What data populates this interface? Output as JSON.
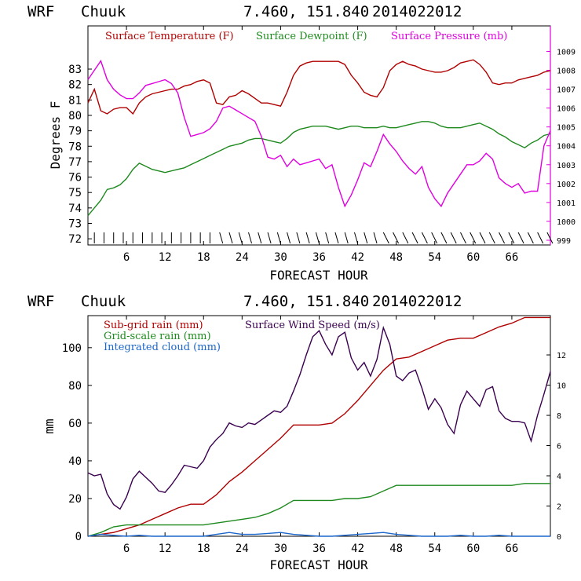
{
  "colors": {
    "temperature": "#b00000",
    "dewpoint": "#1e8a1e",
    "pressure": "#e000e0",
    "subgrid_rain": "#b00000",
    "gridscale_rain": "#1e8a1e",
    "cloud": "#1a66cc",
    "wind_speed": "#3a0050"
  },
  "chart_data": [
    {
      "type": "line",
      "header": {
        "model": "WRF",
        "station": "Chuuk",
        "coords": "7.460, 151.840",
        "init": "2014022012"
      },
      "xlabel": "FORECAST HOUR",
      "ylabel": "Degrees F",
      "xlim": [
        0,
        72
      ],
      "ylim": [
        71.6,
        85.8
      ],
      "y2lim": [
        998.75,
        1010.35
      ],
      "x_ticks": [
        6,
        12,
        18,
        24,
        30,
        36,
        42,
        48,
        54,
        60,
        66
      ],
      "y_ticks": [
        72,
        73,
        74,
        75,
        76,
        77,
        78,
        79,
        80,
        81,
        82,
        83
      ],
      "y2_ticks": [
        999,
        1000,
        1001,
        1002,
        1003,
        1004,
        1005,
        1006,
        1007,
        1008,
        1009
      ],
      "wind_barbs": "along bottom axis, every 1.5 forecast hours",
      "series": [
        {
          "name": "Surface Temperature (F)",
          "axis": "left",
          "x": [
            0,
            1,
            2,
            3,
            4,
            5,
            6,
            7,
            8,
            9,
            10,
            11,
            12,
            13,
            14,
            15,
            16,
            17,
            18,
            19,
            20,
            21,
            22,
            23,
            24,
            25,
            26,
            27,
            28,
            29,
            30,
            31,
            32,
            33,
            34,
            35,
            36,
            37,
            38,
            39,
            40,
            41,
            42,
            43,
            44,
            45,
            46,
            47,
            48,
            49,
            50,
            51,
            52,
            53,
            54,
            55,
            56,
            57,
            58,
            59,
            60,
            61,
            62,
            63,
            64,
            65,
            66,
            67,
            68,
            69,
            70,
            71,
            72
          ],
          "values": [
            80.8,
            81.7,
            80.3,
            80.1,
            80.4,
            80.5,
            80.5,
            80.1,
            80.8,
            81.2,
            81.4,
            81.5,
            81.6,
            81.7,
            81.7,
            81.9,
            82.0,
            82.2,
            82.3,
            82.1,
            80.8,
            80.7,
            81.2,
            81.3,
            81.6,
            81.4,
            81.1,
            80.8,
            80.8,
            80.7,
            80.6,
            81.5,
            82.6,
            83.2,
            83.4,
            83.5,
            83.5,
            83.5,
            83.5,
            83.5,
            83.3,
            82.6,
            82.1,
            81.5,
            81.3,
            81.2,
            81.8,
            82.9,
            83.3,
            83.5,
            83.3,
            83.2,
            83.0,
            82.9,
            82.8,
            82.8,
            82.9,
            83.1,
            83.4,
            83.5,
            83.6,
            83.3,
            82.8,
            82.1,
            82.0,
            82.1,
            82.1,
            82.3,
            82.4,
            82.5,
            82.6,
            82.8,
            82.9
          ]
        },
        {
          "name": "Surface Dewpoint (F)",
          "axis": "left",
          "x": [
            0,
            1,
            2,
            3,
            4,
            5,
            6,
            7,
            8,
            9,
            10,
            11,
            12,
            13,
            14,
            15,
            16,
            17,
            18,
            19,
            20,
            21,
            22,
            23,
            24,
            25,
            26,
            27,
            28,
            29,
            30,
            31,
            32,
            33,
            34,
            35,
            36,
            37,
            38,
            39,
            40,
            41,
            42,
            43,
            44,
            45,
            46,
            47,
            48,
            49,
            50,
            51,
            52,
            53,
            54,
            55,
            56,
            57,
            58,
            59,
            60,
            61,
            62,
            63,
            64,
            65,
            66,
            67,
            68,
            69,
            70,
            71,
            72
          ],
          "values": [
            73.5,
            74.0,
            74.5,
            75.2,
            75.3,
            75.5,
            75.9,
            76.5,
            76.9,
            76.7,
            76.5,
            76.4,
            76.3,
            76.4,
            76.5,
            76.6,
            76.8,
            77.0,
            77.2,
            77.4,
            77.6,
            77.8,
            78.0,
            78.1,
            78.2,
            78.4,
            78.5,
            78.5,
            78.4,
            78.3,
            78.2,
            78.5,
            78.9,
            79.1,
            79.2,
            79.3,
            79.3,
            79.3,
            79.2,
            79.1,
            79.2,
            79.3,
            79.3,
            79.2,
            79.2,
            79.2,
            79.3,
            79.2,
            79.2,
            79.3,
            79.4,
            79.5,
            79.6,
            79.6,
            79.5,
            79.3,
            79.2,
            79.2,
            79.2,
            79.3,
            79.4,
            79.5,
            79.3,
            79.1,
            78.8,
            78.6,
            78.3,
            78.1,
            77.9,
            78.2,
            78.4,
            78.7,
            78.8
          ]
        },
        {
          "name": "Surface Pressure (mb)",
          "axis": "right",
          "x": [
            0,
            1,
            2,
            3,
            4,
            5,
            6,
            7,
            8,
            9,
            10,
            11,
            12,
            13,
            14,
            15,
            16,
            17,
            18,
            19,
            20,
            21,
            22,
            23,
            24,
            25,
            26,
            27,
            28,
            29,
            30,
            31,
            32,
            33,
            34,
            35,
            36,
            37,
            38,
            39,
            40,
            41,
            42,
            43,
            44,
            45,
            46,
            47,
            48,
            49,
            50,
            51,
            52,
            53,
            54,
            55,
            56,
            57,
            58,
            59,
            60,
            61,
            62,
            63,
            64,
            65,
            66,
            67,
            68,
            69,
            70,
            71,
            72
          ],
          "values": [
            1007.5,
            1008.0,
            1008.5,
            1007.5,
            1007.0,
            1006.7,
            1006.5,
            1006.5,
            1006.8,
            1007.2,
            1007.3,
            1007.4,
            1007.5,
            1007.3,
            1006.8,
            1005.5,
            1004.5,
            1004.6,
            1004.7,
            1004.9,
            1005.3,
            1006.0,
            1006.1,
            1005.9,
            1005.7,
            1005.5,
            1005.3,
            1004.5,
            1003.4,
            1003.3,
            1003.5,
            1002.9,
            1003.3,
            1003.0,
            1003.1,
            1003.2,
            1003.3,
            1002.8,
            1003.0,
            1001.8,
            1000.8,
            1001.4,
            1002.2,
            1003.1,
            1002.9,
            1003.7,
            1004.6,
            1004.1,
            1003.7,
            1003.2,
            1002.8,
            1002.5,
            1002.9,
            1001.8,
            1001.2,
            1000.8,
            1001.5,
            1002.0,
            1002.5,
            1003.0,
            1003.0,
            1003.2,
            1003.6,
            1003.3,
            1002.3,
            1002.0,
            1001.8,
            1002.0,
            1001.5,
            1001.6,
            1001.6,
            1004.0,
            1004.8
          ]
        }
      ]
    },
    {
      "type": "line",
      "header": {
        "model": "WRF",
        "station": "Chuuk",
        "coords": "7.460, 151.840",
        "init": "2014022012"
      },
      "xlabel": "FORECAST HOUR",
      "ylabel": "mm",
      "xlim": [
        0,
        72
      ],
      "ylim": [
        0,
        117
      ],
      "y2lim": [
        0,
        14.6
      ],
      "x_ticks": [
        6,
        12,
        18,
        24,
        30,
        36,
        42,
        48,
        54,
        60,
        66
      ],
      "y_ticks": [
        0,
        20,
        40,
        60,
        80,
        100
      ],
      "y2_ticks": [
        0,
        2,
        4,
        6,
        8,
        10,
        12
      ],
      "series": [
        {
          "name": "Sub-grid rain (mm)",
          "axis": "left",
          "x": [
            0,
            2,
            4,
            6,
            8,
            10,
            12,
            14,
            16,
            18,
            20,
            22,
            24,
            26,
            28,
            30,
            32,
            34,
            36,
            38,
            40,
            42,
            44,
            46,
            48,
            50,
            52,
            54,
            56,
            58,
            60,
            62,
            64,
            66,
            68,
            70,
            72
          ],
          "values": [
            0,
            1,
            2,
            4,
            6,
            9,
            12,
            15,
            17,
            17,
            22,
            29,
            34,
            40,
            46,
            52,
            59,
            59,
            59,
            60,
            65,
            72,
            80,
            88,
            94,
            95,
            98,
            101,
            104,
            105,
            105,
            108,
            111,
            113,
            116,
            116,
            116
          ]
        },
        {
          "name": "Grid-scale rain (mm)",
          "axis": "left",
          "x": [
            0,
            2,
            4,
            6,
            8,
            10,
            12,
            14,
            16,
            18,
            20,
            22,
            24,
            26,
            28,
            30,
            32,
            34,
            36,
            38,
            40,
            42,
            44,
            46,
            48,
            50,
            52,
            54,
            56,
            58,
            60,
            62,
            64,
            66,
            68,
            70,
            72
          ],
          "values": [
            0,
            2,
            5,
            6,
            6,
            6,
            6,
            6,
            6,
            6,
            7,
            8,
            9,
            10,
            12,
            15,
            19,
            19,
            19,
            19,
            20,
            20,
            21,
            24,
            27,
            27,
            27,
            27,
            27,
            27,
            27,
            27,
            27,
            27,
            28,
            28,
            28
          ]
        },
        {
          "name": "Integrated cloud (mm)",
          "axis": "left",
          "x": [
            0,
            2,
            4,
            6,
            8,
            10,
            12,
            14,
            16,
            18,
            20,
            22,
            24,
            26,
            28,
            30,
            32,
            34,
            36,
            38,
            40,
            42,
            44,
            46,
            48,
            50,
            52,
            54,
            56,
            58,
            60,
            62,
            64,
            66,
            68,
            70,
            72
          ],
          "values": [
            0,
            1,
            0.5,
            0,
            0.5,
            0,
            0,
            0,
            0,
            0,
            1,
            2,
            1,
            1,
            1.5,
            2,
            1,
            0.5,
            0,
            0,
            0.5,
            1,
            1.5,
            2,
            1,
            0.5,
            0,
            0,
            0,
            0.5,
            0,
            0,
            0.5,
            0,
            0,
            0,
            0
          ]
        },
        {
          "name": "Surface Wind Speed (m/s)",
          "axis": "right",
          "x": [
            0,
            1,
            2,
            3,
            4,
            5,
            6,
            7,
            8,
            9,
            10,
            11,
            12,
            13,
            14,
            15,
            16,
            17,
            18,
            19,
            20,
            21,
            22,
            23,
            24,
            25,
            26,
            27,
            28,
            29,
            30,
            31,
            32,
            33,
            34,
            35,
            36,
            37,
            38,
            39,
            40,
            41,
            42,
            43,
            44,
            45,
            46,
            47,
            48,
            49,
            50,
            51,
            52,
            53,
            54,
            55,
            56,
            57,
            58,
            59,
            60,
            61,
            62,
            63,
            64,
            65,
            66,
            67,
            68,
            69,
            70,
            71,
            72
          ],
          "values": [
            4.2,
            4.0,
            4.1,
            2.8,
            2.1,
            1.8,
            2.6,
            3.8,
            4.3,
            3.9,
            3.5,
            3.0,
            2.9,
            3.4,
            4.0,
            4.7,
            4.6,
            4.5,
            5.0,
            5.9,
            6.4,
            6.8,
            7.5,
            7.3,
            7.2,
            7.5,
            7.4,
            7.7,
            8.0,
            8.3,
            8.2,
            8.6,
            9.6,
            10.7,
            12.0,
            13.2,
            13.6,
            12.7,
            12.0,
            13.2,
            13.5,
            11.8,
            11.0,
            11.5,
            10.6,
            11.7,
            13.8,
            12.7,
            10.6,
            10.3,
            10.8,
            11.0,
            9.8,
            8.4,
            9.1,
            8.5,
            7.4,
            6.8,
            8.7,
            9.6,
            9.1,
            8.6,
            9.7,
            9.9,
            8.3,
            7.8,
            7.6,
            7.6,
            7.5,
            6.3,
            8.0,
            9.4,
            10.9
          ]
        }
      ]
    }
  ]
}
